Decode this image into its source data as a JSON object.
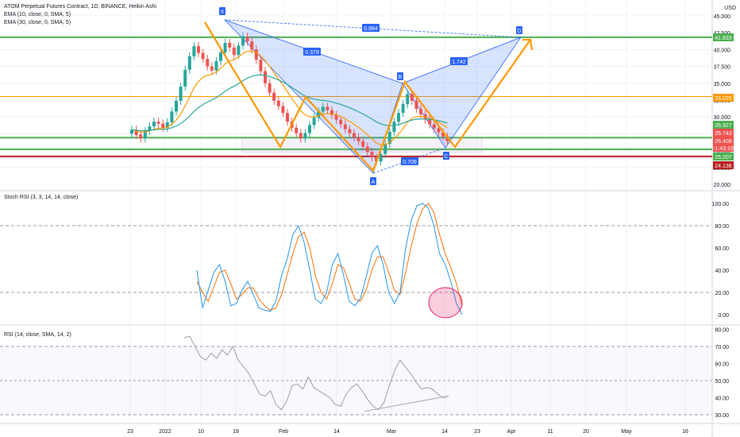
{
  "legend": {
    "title": "ATOM Perpetual Futures Contract, 1D, BINANCE, Heikin Ashi",
    "ema1": "EMA (10, close, 0, SMA, 5)",
    "ema2": "EMA (30, close, 0, SMA, 5)",
    "stoch": "Stoch RSI (3, 3, 14, 14, close)",
    "rsi": "RSI (14, close, SMA, 14, 2)"
  },
  "price_axis": {
    "currency": "USD",
    "ticks": [
      "45.000",
      "42.500",
      "40.000",
      "37.500",
      "35.000",
      "32.500",
      "30.000",
      "27.500",
      "25.000",
      "22.500",
      "20.000"
    ]
  },
  "price_badges": [
    {
      "text": "41.833",
      "color": "#4caf50",
      "value": 41.833
    },
    {
      "text": "33.025",
      "color": "#ff9800",
      "value": 33.025
    },
    {
      "text": "26.927",
      "color": "#4caf50",
      "value": 26.927
    },
    {
      "text": "26.743",
      "color": "#ef5350",
      "value": 26.743
    },
    {
      "text": "26.408",
      "color": "#ef5350",
      "value": 26.408
    },
    {
      "text": "-1:43:19",
      "color": "#ef5350",
      "value": 25.9
    },
    {
      "text": "25.207",
      "color": "#4caf50",
      "value": 25.207
    },
    {
      "text": "24.138",
      "color": "#b71c1c",
      "value": 24.138
    }
  ],
  "horizontal_lines": [
    {
      "value": 41.833,
      "color": "#4caf50"
    },
    {
      "value": 33.025,
      "color": "#ff9800"
    },
    {
      "value": 26.927,
      "color": "#4caf50"
    },
    {
      "value": 25.207,
      "color": "#4caf50"
    },
    {
      "value": 24.138,
      "color": "#b71c1c"
    }
  ],
  "stoch_axis": {
    "ticks": [
      "100.00",
      "80.00",
      "60.00",
      "40.00",
      "20.00",
      "0.00"
    ]
  },
  "rsi_axis": {
    "ticks": [
      "80.00",
      "70.00",
      "60.00",
      "50.00",
      "40.00",
      "30.00"
    ]
  },
  "time_axis": [
    "23",
    "2022",
    "10",
    "19",
    "Feb",
    "14",
    "Mar",
    "14",
    "23",
    "Apr",
    "11",
    "20",
    "May",
    "16"
  ],
  "harmonic": {
    "points": [
      "X",
      "A",
      "B",
      "C",
      "D"
    ],
    "ratios": [
      "0.884",
      "0.379",
      "1.742",
      "0.709"
    ]
  },
  "chart_data": {
    "type": "candlestick",
    "title": "ATOM Perpetual Futures Contract, 1D, BINANCE, Heikin Ashi",
    "ylabel": "USD",
    "ylim": [
      20,
      46
    ],
    "series": [
      {
        "name": "EMA (10, close, 0, SMA, 5)",
        "color": "#ff9800"
      },
      {
        "name": "EMA (30, close, 0, SMA, 5)",
        "color": "#26a69a"
      }
    ],
    "candles": [
      [
        27.5,
        28.1
      ],
      [
        28.1,
        27.3
      ],
      [
        27.4,
        26.8
      ],
      [
        26.8,
        27.9
      ],
      [
        27.9,
        28.6
      ],
      [
        28.6,
        29.3
      ],
      [
        29.3,
        29.0
      ],
      [
        29.0,
        28.4
      ],
      [
        28.4,
        29.2
      ],
      [
        29.2,
        30.8
      ],
      [
        30.8,
        32.4
      ],
      [
        32.4,
        34.5
      ],
      [
        34.5,
        37.0
      ],
      [
        37.0,
        39.0
      ],
      [
        39.0,
        40.5
      ],
      [
        40.5,
        39.5
      ],
      [
        39.5,
        38.6
      ],
      [
        38.6,
        37.5
      ],
      [
        37.5,
        36.9
      ],
      [
        36.9,
        38.3
      ],
      [
        38.3,
        39.6
      ],
      [
        39.6,
        41.0
      ],
      [
        41.0,
        40.3
      ],
      [
        40.3,
        39.2
      ],
      [
        39.2,
        40.6
      ],
      [
        40.6,
        41.9
      ],
      [
        41.9,
        41.2
      ],
      [
        41.2,
        40.0
      ],
      [
        40.0,
        38.5
      ],
      [
        38.5,
        36.8
      ],
      [
        36.8,
        35.0
      ],
      [
        35.0,
        33.6
      ],
      [
        33.6,
        32.4
      ],
      [
        32.4,
        31.6
      ],
      [
        31.6,
        30.6
      ],
      [
        30.6,
        29.3
      ],
      [
        29.3,
        28.4
      ],
      [
        28.4,
        27.6
      ],
      [
        27.6,
        26.8
      ],
      [
        26.8,
        27.6
      ],
      [
        27.6,
        28.8
      ],
      [
        28.8,
        29.9
      ],
      [
        29.9,
        30.8
      ],
      [
        30.8,
        31.5
      ],
      [
        31.5,
        31.0
      ],
      [
        31.0,
        30.3
      ],
      [
        30.3,
        29.6
      ],
      [
        29.6,
        28.9
      ],
      [
        28.9,
        28.2
      ],
      [
        28.2,
        27.6
      ],
      [
        27.6,
        27.0
      ],
      [
        27.0,
        26.4
      ],
      [
        26.4,
        25.6
      ],
      [
        25.6,
        24.8
      ],
      [
        24.8,
        24.0
      ],
      [
        24.0,
        23.4
      ],
      [
        23.4,
        24.5
      ],
      [
        24.5,
        26.0
      ],
      [
        26.0,
        27.8
      ],
      [
        27.8,
        29.3
      ],
      [
        29.3,
        30.6
      ],
      [
        30.6,
        31.9
      ],
      [
        31.9,
        33.4
      ],
      [
        33.4,
        32.4
      ],
      [
        32.4,
        31.2
      ],
      [
        31.2,
        30.4
      ],
      [
        30.4,
        29.6
      ],
      [
        29.6,
        28.9
      ],
      [
        28.9,
        28.3
      ],
      [
        28.3,
        27.7
      ],
      [
        27.7,
        27.1
      ],
      [
        27.1,
        26.4
      ]
    ],
    "stoch_rsi": {
      "ylim": [
        0,
        100
      ],
      "k": [
        40,
        6,
        22,
        38,
        45,
        30,
        8,
        10,
        22,
        30,
        18,
        6,
        4,
        3,
        12,
        35,
        50,
        72,
        80,
        65,
        40,
        14,
        10,
        20,
        45,
        55,
        35,
        12,
        8,
        15,
        34,
        55,
        62,
        45,
        20,
        10,
        20,
        60,
        85,
        98,
        100,
        96,
        80,
        55,
        45,
        30,
        10,
        0
      ],
      "d": [
        30,
        20,
        12,
        25,
        38,
        40,
        28,
        14,
        18,
        24,
        24,
        14,
        8,
        4,
        6,
        18,
        36,
        55,
        70,
        74,
        60,
        35,
        20,
        14,
        28,
        45,
        42,
        28,
        14,
        12,
        22,
        40,
        52,
        52,
        38,
        22,
        18,
        38,
        62,
        82,
        95,
        100,
        92,
        72,
        55,
        42,
        28,
        8
      ]
    },
    "rsi": {
      "ylim": [
        25,
        85
      ],
      "values": [
        75,
        76,
        70,
        64,
        62,
        66,
        63,
        68,
        65,
        70,
        62,
        58,
        54,
        48,
        42,
        41,
        44,
        36,
        33,
        38,
        47,
        48,
        45,
        52,
        46,
        44,
        42,
        40,
        36,
        35,
        42,
        46,
        48,
        44,
        39,
        35,
        33,
        37,
        47,
        56,
        62,
        58,
        54,
        49,
        45,
        46,
        45,
        42,
        40,
        41
      ]
    }
  }
}
